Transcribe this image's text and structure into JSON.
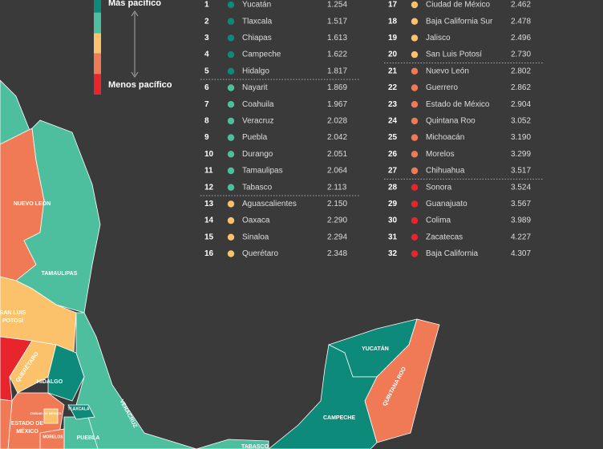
{
  "legend": {
    "top": "Más pacífico",
    "bottom": "Menos pacífico"
  },
  "tiers": [
    "#0e8a7a",
    "#4dbf9f",
    "#fbc26b",
    "#f07a56",
    "#e8252c"
  ],
  "rows": [
    {
      "rank": 1,
      "name": "Yucatán",
      "value": "1.254",
      "tier": 0
    },
    {
      "rank": 2,
      "name": "Tlaxcala",
      "value": "1.517",
      "tier": 0
    },
    {
      "rank": 3,
      "name": "Chiapas",
      "value": "1.613",
      "tier": 0
    },
    {
      "rank": 4,
      "name": "Campeche",
      "value": "1.622",
      "tier": 0
    },
    {
      "rank": 5,
      "name": "Hidalgo",
      "value": "1.817",
      "tier": 0
    },
    {
      "rank": 6,
      "name": "Nayarit",
      "value": "1.869",
      "tier": 1
    },
    {
      "rank": 7,
      "name": "Coahuila",
      "value": "1.967",
      "tier": 1
    },
    {
      "rank": 8,
      "name": "Veracruz",
      "value": "2.028",
      "tier": 1
    },
    {
      "rank": 9,
      "name": "Puebla",
      "value": "2.042",
      "tier": 1
    },
    {
      "rank": 10,
      "name": "Durango",
      "value": "2.051",
      "tier": 1
    },
    {
      "rank": 11,
      "name": "Tamaulipas",
      "value": "2.064",
      "tier": 1
    },
    {
      "rank": 12,
      "name": "Tabasco",
      "value": "2.113",
      "tier": 1
    },
    {
      "rank": 13,
      "name": "Aguascalientes",
      "value": "2.150",
      "tier": 2
    },
    {
      "rank": 14,
      "name": "Oaxaca",
      "value": "2.290",
      "tier": 2
    },
    {
      "rank": 15,
      "name": "Sinaloa",
      "value": "2.294",
      "tier": 2
    },
    {
      "rank": 16,
      "name": "Querétaro",
      "value": "2.348",
      "tier": 2
    },
    {
      "rank": 17,
      "name": "Ciudad de México",
      "value": "2.462",
      "tier": 2
    },
    {
      "rank": 18,
      "name": "Baja California Sur",
      "value": "2.478",
      "tier": 2
    },
    {
      "rank": 19,
      "name": "Jalisco",
      "value": "2.496",
      "tier": 2
    },
    {
      "rank": 20,
      "name": "San Luis Potosí",
      "value": "2.730",
      "tier": 2
    },
    {
      "rank": 21,
      "name": "Nuevo León",
      "value": "2.802",
      "tier": 3
    },
    {
      "rank": 22,
      "name": "Guerrero",
      "value": "2.862",
      "tier": 3
    },
    {
      "rank": 23,
      "name": "Estado de México",
      "value": "2.904",
      "tier": 3
    },
    {
      "rank": 24,
      "name": "Quintana Roo",
      "value": "3.052",
      "tier": 3
    },
    {
      "rank": 25,
      "name": "Michoacán",
      "value": "3.190",
      "tier": 3
    },
    {
      "rank": 26,
      "name": "Morelos",
      "value": "3.299",
      "tier": 3
    },
    {
      "rank": 27,
      "name": "Chihuahua",
      "value": "3.517",
      "tier": 3
    },
    {
      "rank": 28,
      "name": "Sonora",
      "value": "3.524",
      "tier": 4
    },
    {
      "rank": 29,
      "name": "Guanajuato",
      "value": "3.567",
      "tier": 4
    },
    {
      "rank": 30,
      "name": "Colima",
      "value": "3.989",
      "tier": 4
    },
    {
      "rank": 31,
      "name": "Zacatecas",
      "value": "4.227",
      "tier": 4
    },
    {
      "rank": 32,
      "name": "Baja California",
      "value": "4.307",
      "tier": 4
    }
  ],
  "map_labels": [
    "NUEVO LEÓN",
    "TAMAULIPAS",
    "SAN LUIS",
    "POTOSÍ",
    "QUERÉTARO",
    "HIDALGO",
    "ESTADO DE",
    "MÉXICO",
    "CIUDAD DE MÉXICO",
    "MORELOS",
    "TLAXCALA",
    "PUEBLA",
    "VERACRUZ",
    "TABASCO",
    "CAMPECHE",
    "YUCATÁN",
    "QUINTANA ROO"
  ]
}
